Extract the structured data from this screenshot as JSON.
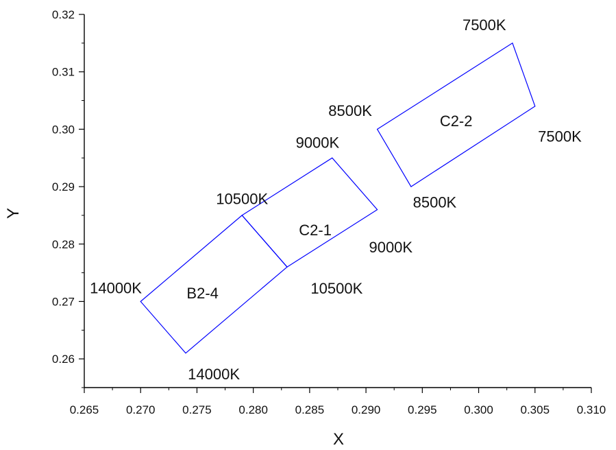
{
  "chart_data": {
    "type": "scatter",
    "title": "",
    "xlabel": "X",
    "ylabel": "Y",
    "xlim": [
      0.265,
      0.31
    ],
    "ylim": [
      0.255,
      0.32
    ],
    "xticks": [
      0.265,
      0.27,
      0.275,
      0.28,
      0.285,
      0.29,
      0.295,
      0.3,
      0.305,
      0.31
    ],
    "xtick_labels": [
      "0.265",
      "0.270",
      "0.275",
      "0.280",
      "0.285",
      "0.290",
      "0.295",
      "0.300",
      "0.305",
      "0.310"
    ],
    "yticks": [
      0.26,
      0.27,
      0.28,
      0.29,
      0.3,
      0.31,
      0.32
    ],
    "ytick_labels": [
      "0.26",
      "0.27",
      "0.28",
      "0.29",
      "0.30",
      "0.31",
      "0.32"
    ],
    "grid": false,
    "outline_color": "#0000ff",
    "regions": [
      {
        "name": "B2-4",
        "label_at": [
          0.2755,
          0.2715
        ],
        "points": [
          [
            0.27,
            0.27
          ],
          [
            0.279,
            0.285
          ],
          [
            0.283,
            0.276
          ],
          [
            0.274,
            0.261
          ]
        ]
      },
      {
        "name": "C2-1",
        "label_at": [
          0.2855,
          0.2825
        ],
        "points": [
          [
            0.279,
            0.285
          ],
          [
            0.287,
            0.295
          ],
          [
            0.291,
            0.286
          ],
          [
            0.283,
            0.276
          ]
        ]
      },
      {
        "name": "C2-2",
        "label_at": [
          0.298,
          0.3015
        ],
        "points": [
          [
            0.291,
            0.3
          ],
          [
            0.303,
            0.315
          ],
          [
            0.305,
            0.304
          ],
          [
            0.294,
            0.29
          ]
        ]
      }
    ],
    "vertex_labels": [
      {
        "text": "14000K",
        "at": [
          0.2678,
          0.2724
        ]
      },
      {
        "text": "14000K",
        "at": [
          0.2765,
          0.2574
        ]
      },
      {
        "text": "10500K",
        "at": [
          0.279,
          0.2879
        ]
      },
      {
        "text": "10500K",
        "at": [
          0.2874,
          0.2723
        ]
      },
      {
        "text": "9000K",
        "at": [
          0.2857,
          0.2977
        ]
      },
      {
        "text": "9000K",
        "at": [
          0.2922,
          0.2795
        ]
      },
      {
        "text": "8500K",
        "at": [
          0.2886,
          0.3033
        ]
      },
      {
        "text": "8500K",
        "at": [
          0.2961,
          0.2873
        ]
      },
      {
        "text": "7500K",
        "at": [
          0.3005,
          0.3182
        ]
      },
      {
        "text": "7500K",
        "at": [
          0.3072,
          0.2988
        ]
      }
    ]
  }
}
